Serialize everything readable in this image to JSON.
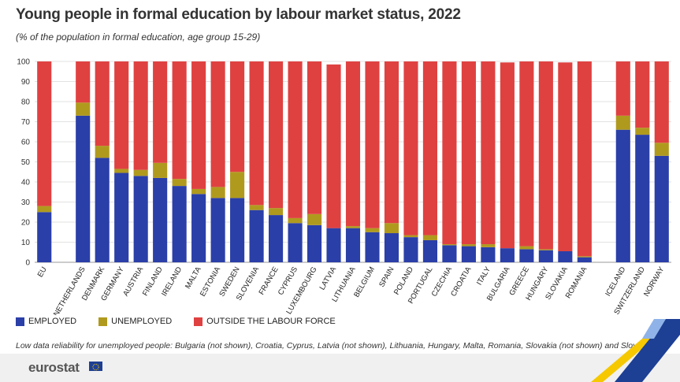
{
  "header": {
    "title": "Young people in formal education by labour market status, 2022",
    "subtitle": "(% of the population in formal education, age group 15-29)"
  },
  "legend": {
    "employed": "EMPLOYED",
    "unemployed": "UNEMPLOYED",
    "outside": "OUTSIDE THE LABOUR FORCE"
  },
  "footnote": "Low data reliability for unemployed people: Bulgaria (not shown), Croatia, Cyprus, Latvia (not shown), Lithuania, Hungary, Malta, Romania, Slovakia (not shown) and Slovenia",
  "logo": {
    "text": "eurostat"
  },
  "colors": {
    "employed": "#2b3fa8",
    "unemployed": "#b09a1e",
    "outside": "#df4141",
    "grid": "#e2e2e2",
    "text": "#333333",
    "accent_yellow": "#f5c800",
    "accent_blue": "#1d3f94"
  },
  "chart_data": {
    "type": "bar",
    "stacked": true,
    "title": "Young people in formal education by labour market status, 2022",
    "subtitle": "(% of the population in formal education, age group 15-29)",
    "ylim": [
      0,
      100
    ],
    "yticks": [
      0,
      10,
      20,
      30,
      40,
      50,
      60,
      70,
      80,
      90,
      100
    ],
    "grid": true,
    "legend_position": "bottom-left",
    "groups": [
      [
        "EU"
      ],
      [
        "NETHERLANDS",
        "DENMARK",
        "GERMANY",
        "AUSTRIA",
        "FINLAND",
        "IRELAND",
        "MALTA",
        "ESTONIA",
        "SWEDEN",
        "SLOVENIA",
        "FRANCE",
        "CYPRUS",
        "LUXEMBOURG",
        "LATVIA",
        "LITHUANIA",
        "BELGIUM",
        "SPAIN",
        "POLAND",
        "PORTUGAL",
        "CZECHIA",
        "CROATIA",
        "ITALY",
        "BULGARIA",
        "GREECE",
        "HUNGARY",
        "SLOVAKIA",
        "ROMANIA"
      ],
      [
        "ICELAND",
        "SWITZERLAND",
        "NORWAY"
      ]
    ],
    "categories": [
      "EU",
      "NETHERLANDS",
      "DENMARK",
      "GERMANY",
      "AUSTRIA",
      "FINLAND",
      "IRELAND",
      "MALTA",
      "ESTONIA",
      "SWEDEN",
      "SLOVENIA",
      "FRANCE",
      "CYPRUS",
      "LUXEMBOURG",
      "LATVIA",
      "LITHUANIA",
      "BELGIUM",
      "SPAIN",
      "POLAND",
      "PORTUGAL",
      "CZECHIA",
      "CROATIA",
      "ITALY",
      "BULGARIA",
      "GREECE",
      "HUNGARY",
      "SLOVAKIA",
      "ROMANIA",
      "ICELAND",
      "SWITZERLAND",
      "NORWAY"
    ],
    "series": [
      {
        "name": "EMPLOYED",
        "values": [
          25.0,
          73.0,
          52.0,
          44.5,
          43.0,
          42.0,
          38.0,
          34.0,
          32.0,
          32.0,
          26.0,
          23.5,
          19.5,
          18.5,
          17.0,
          17.0,
          15.0,
          14.5,
          12.5,
          11.0,
          8.5,
          8.0,
          7.5,
          7.0,
          6.5,
          6.0,
          5.5,
          2.5,
          66.0,
          63.5,
          53.0
        ]
      },
      {
        "name": "UNEMPLOYED",
        "values": [
          3.0,
          6.5,
          6.0,
          2.0,
          3.0,
          7.5,
          3.5,
          2.5,
          5.5,
          13.0,
          2.5,
          3.5,
          2.5,
          5.5,
          0.0,
          1.0,
          2.0,
          5.0,
          1.0,
          2.5,
          0.5,
          1.0,
          1.5,
          0.0,
          1.5,
          0.5,
          0.0,
          0.5,
          7.0,
          3.5,
          6.5
        ]
      },
      {
        "name": "OUTSIDE THE LABOUR FORCE",
        "values": [
          72.0,
          20.5,
          42.0,
          53.5,
          54.0,
          50.5,
          58.5,
          63.5,
          62.5,
          55.0,
          71.5,
          73.0,
          78.0,
          76.0,
          81.5,
          82.0,
          83.0,
          80.5,
          86.5,
          86.5,
          91.0,
          91.0,
          91.0,
          92.5,
          92.0,
          93.5,
          94.0,
          97.0,
          27.0,
          33.0,
          40.5
        ]
      }
    ]
  }
}
